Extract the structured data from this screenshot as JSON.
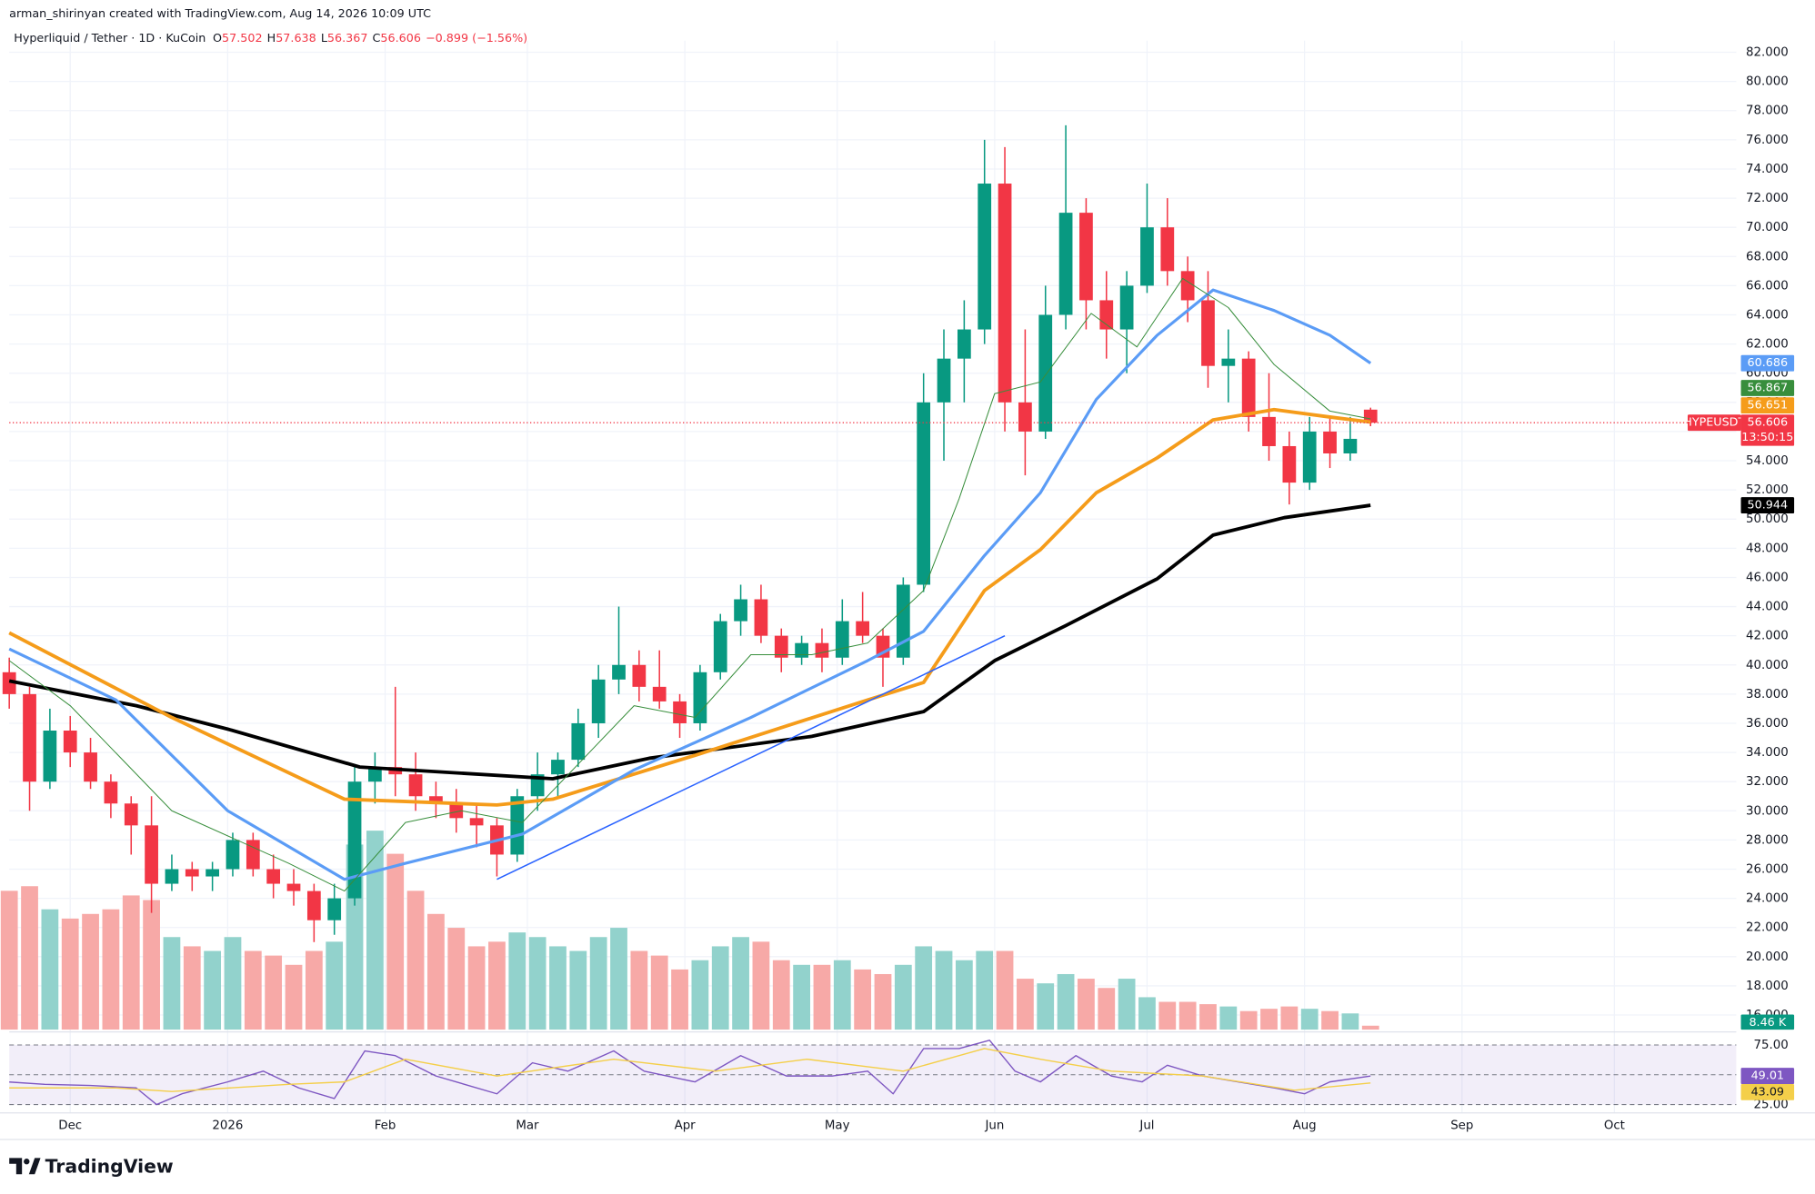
{
  "header": {
    "attribution": "arman_shirinyan created with TradingView.com, Aug 14, 2026 10:09 UTC",
    "symbol": "Hyperliquid / Tether · 1D · KuCoin",
    "change": "−0.899 (−1.56%)"
  },
  "footer": {
    "brand": "TradingView"
  },
  "chart_data": [
    {
      "type": "candlestick",
      "up_color": "#089981",
      "down_color": "#f23645",
      "volume_up_color": "#92d2cc",
      "volume_down_color": "#f7a9a7",
      "ohlc_labels": [
        "O",
        "H",
        "L",
        "C"
      ],
      "last_label": "HYPEUSDT",
      "countdown": "13:50:15",
      "volume_last_label": "8.46 K",
      "xlim": [
        -12,
        328
      ],
      "xticks": [
        {
          "value": 0,
          "label": "Dec"
        },
        {
          "value": 31,
          "label": "2026"
        },
        {
          "value": 62,
          "label": "Feb"
        },
        {
          "value": 90,
          "label": "Mar"
        },
        {
          "value": 121,
          "label": "Apr"
        },
        {
          "value": 151,
          "label": "May"
        },
        {
          "value": 182,
          "label": "Jun"
        },
        {
          "value": 212,
          "label": "Jul"
        },
        {
          "value": 243,
          "label": "Aug"
        },
        {
          "value": 274,
          "label": "Sep"
        },
        {
          "value": 304,
          "label": "Oct"
        }
      ],
      "ylim": [
        15,
        82.8
      ],
      "yticks": [
        {
          "value": 82,
          "label": "82.000"
        },
        {
          "value": 80,
          "label": "80.000"
        },
        {
          "value": 78,
          "label": "78.000"
        },
        {
          "value": 76,
          "label": "76.000"
        },
        {
          "value": 74,
          "label": "74.000"
        },
        {
          "value": 72,
          "label": "72.000"
        },
        {
          "value": 70,
          "label": "70.000"
        },
        {
          "value": 68,
          "label": "68.000"
        },
        {
          "value": 66,
          "label": "66.000"
        },
        {
          "value": 64,
          "label": "64.000"
        },
        {
          "value": 62,
          "label": "62.000"
        },
        {
          "value": 60,
          "label": "60.000"
        },
        {
          "value": 58,
          "label": "58.000"
        },
        {
          "value": 56,
          "label": "56.000"
        },
        {
          "value": 54,
          "label": "54.000"
        },
        {
          "value": 52,
          "label": "52.000"
        },
        {
          "value": 50,
          "label": "50.000"
        },
        {
          "value": 48,
          "label": "48.000"
        },
        {
          "value": 46,
          "label": "46.000"
        },
        {
          "value": 44,
          "label": "44.000"
        },
        {
          "value": 42,
          "label": "42.000"
        },
        {
          "value": 40,
          "label": "40.000"
        },
        {
          "value": 38,
          "label": "38.000"
        },
        {
          "value": 36,
          "label": "36.000"
        },
        {
          "value": 34,
          "label": "34.000"
        },
        {
          "value": 32,
          "label": "32.000"
        },
        {
          "value": 30,
          "label": "30.000"
        },
        {
          "value": 28,
          "label": "28.000"
        },
        {
          "value": 26,
          "label": "26.000"
        },
        {
          "value": 24,
          "label": "24.000"
        },
        {
          "value": 22,
          "label": "22.000"
        },
        {
          "value": 20,
          "label": "20.000"
        },
        {
          "value": 18,
          "label": "18.000"
        },
        {
          "value": 16,
          "label": "16.000"
        }
      ],
      "grid": true,
      "vlim": [
        0,
        600
      ],
      "x": [
        -12,
        -8,
        -4,
        0,
        4,
        8,
        12,
        16,
        20,
        24,
        28,
        32,
        36,
        40,
        44,
        48,
        52,
        56,
        60,
        64,
        68,
        72,
        76,
        80,
        84,
        88,
        92,
        96,
        100,
        104,
        108,
        112,
        116,
        120,
        124,
        128,
        132,
        136,
        140,
        144,
        148,
        152,
        156,
        160,
        164,
        168,
        172,
        176,
        180,
        184,
        188,
        192,
        196,
        200,
        204,
        208,
        212,
        216,
        220,
        224,
        228,
        232,
        236,
        240,
        244,
        248,
        252,
        256
      ],
      "open": [
        39.5,
        38,
        32,
        35.5,
        34,
        32,
        30.5,
        29,
        25,
        26,
        25.5,
        26,
        28,
        26,
        25,
        24.5,
        22.5,
        24,
        32,
        33,
        32.5,
        31,
        30.5,
        29.5,
        29,
        27,
        31,
        32.5,
        33.5,
        36,
        39,
        40,
        38.5,
        37.5,
        36,
        39.5,
        43,
        44.5,
        42,
        40.5,
        41.5,
        40.5,
        43,
        42,
        40.5,
        45.5,
        58,
        61,
        63,
        73,
        58,
        56,
        64,
        71,
        65,
        63,
        66,
        70,
        67,
        65,
        60.5,
        61,
        57,
        55,
        52.5,
        56,
        54.5,
        57.502
      ],
      "high": [
        40.5,
        38.5,
        37,
        36.5,
        35,
        32.5,
        31,
        31,
        27,
        26.5,
        26.5,
        28.5,
        28.5,
        27,
        26,
        25,
        25,
        33,
        34,
        38.5,
        34,
        32,
        31.5,
        30.5,
        29.5,
        31.5,
        34,
        34,
        37,
        40,
        44,
        41,
        41,
        38,
        40,
        43.5,
        45.5,
        45.5,
        42.5,
        42,
        42.5,
        44.5,
        45,
        42.5,
        46,
        60,
        63,
        65,
        76,
        75.5,
        63,
        66,
        77,
        72,
        67,
        67,
        73,
        72,
        68,
        67,
        63,
        61.5,
        60,
        56,
        57,
        57,
        57,
        57.638
      ],
      "low": [
        37,
        30,
        31.5,
        33,
        31.5,
        29.5,
        27,
        23,
        24.5,
        24.5,
        24.5,
        25.5,
        25.5,
        24,
        23.5,
        21,
        21.5,
        23.5,
        30.5,
        31,
        30,
        29.5,
        28.5,
        27.5,
        25.5,
        26.5,
        30,
        31,
        33,
        35,
        38,
        37.5,
        37,
        35,
        35.5,
        39,
        42,
        41.5,
        39.5,
        40,
        39.5,
        40,
        41.5,
        38.5,
        40,
        45,
        54,
        58,
        62,
        56,
        53,
        55.5,
        63,
        63,
        61,
        60,
        65.5,
        66,
        63.5,
        59,
        58,
        56,
        54,
        51,
        52,
        53.5,
        54,
        56.367
      ],
      "close": [
        38,
        32,
        35.5,
        34,
        32,
        30.5,
        29,
        25,
        26,
        25.5,
        26,
        28,
        26,
        25,
        24.5,
        22.5,
        24,
        32,
        33,
        32.5,
        31,
        30.5,
        29.5,
        29,
        27,
        31,
        32.5,
        33.5,
        36,
        39,
        40,
        38.5,
        37.5,
        36,
        39.5,
        43,
        44.5,
        42,
        40.5,
        41.5,
        40.5,
        43,
        42,
        40.5,
        45.5,
        58,
        61,
        63,
        73,
        58,
        56,
        64,
        71,
        65,
        63,
        66,
        70,
        67,
        65,
        60.5,
        61,
        57,
        55,
        52.5,
        56,
        54.5,
        55.5,
        56.606
      ],
      "volume": [
        300,
        310,
        260,
        240,
        250,
        260,
        290,
        280,
        200,
        180,
        170,
        200,
        170,
        160,
        140,
        170,
        190,
        400,
        430,
        380,
        300,
        250,
        220,
        180,
        190,
        210,
        200,
        180,
        170,
        200,
        220,
        170,
        160,
        130,
        150,
        180,
        200,
        190,
        150,
        140,
        140,
        150,
        130,
        120,
        140,
        180,
        170,
        150,
        170,
        170,
        110,
        100,
        120,
        110,
        90,
        110,
        70,
        60,
        60,
        55,
        50,
        40,
        45,
        50,
        45,
        40,
        35,
        8.46
      ],
      "series": [
        {
          "color": "#000000",
          "width": 3,
          "x": [
            -12,
            13,
            31,
            57,
            95,
            114,
            146,
            168,
            182,
            196,
            214,
            225,
            239,
            256
          ],
          "values": [
            38.9,
            37.2,
            35.6,
            33.0,
            32.2,
            33.6,
            35.1,
            36.8,
            40.3,
            42.7,
            45.9,
            48.9,
            50.1,
            50.944
          ]
        },
        {
          "color": "#f59c1a",
          "width": 3,
          "x": [
            -12,
            20,
            54,
            84,
            95,
            123,
            157,
            168,
            180,
            191,
            202,
            214,
            225,
            237,
            248,
            256
          ],
          "values": [
            42.2,
            36.4,
            30.8,
            30.4,
            30.8,
            33.8,
            37.6,
            38.8,
            45.1,
            47.9,
            51.8,
            54.2,
            56.8,
            57.5,
            57.0,
            56.651
          ]
        },
        {
          "color": "#5b9cf6",
          "width": 2.5,
          "x": [
            -12,
            9,
            31,
            54,
            66,
            89,
            111,
            134,
            157,
            168,
            180,
            191,
            202,
            214,
            225,
            237,
            248,
            256
          ],
          "values": [
            41.1,
            37.6,
            30.0,
            25.3,
            26.4,
            28.4,
            32.8,
            36.4,
            40.3,
            42.3,
            47.5,
            51.8,
            58.2,
            62.6,
            65.7,
            64.3,
            62.6,
            60.686
          ]
        },
        {
          "color": "#388e3c",
          "width": 0.8,
          "x": [
            -12,
            0,
            20,
            43,
            54,
            66,
            77,
            89,
            100,
            111,
            123,
            134,
            146,
            157,
            168,
            175,
            182,
            191,
            201,
            210,
            219,
            228,
            237,
            248,
            256
          ],
          "values": [
            40.3,
            37.2,
            30,
            26.4,
            24.5,
            29.2,
            30,
            29.2,
            33.2,
            37.2,
            36.4,
            40.7,
            40.7,
            41.5,
            45.1,
            51.4,
            58.6,
            59.4,
            64.1,
            61.8,
            66.5,
            64.5,
            60.6,
            57.4,
            56.867
          ]
        }
      ],
      "trendline": {
        "color": "#2962ff",
        "x": [
          84,
          184
        ],
        "values": [
          25.3,
          42.0
        ]
      }
    },
    {
      "type": "line",
      "ylim": [
        18,
        84
      ],
      "yticks": [
        {
          "value": 75,
          "label": "75.00"
        },
        {
          "value": 25,
          "label": "25.00"
        }
      ],
      "band": [
        25,
        75
      ],
      "mid": 50,
      "band_color": "#7e57c2",
      "series": [
        {
          "color": "#7e57c2",
          "x": [
            -12,
            -5,
            4,
            13,
            17,
            22,
            31,
            38,
            45,
            52,
            58,
            64,
            72,
            84,
            91,
            98,
            107,
            113,
            123,
            132,
            141,
            150,
            157,
            162,
            168,
            175,
            181,
            186,
            191,
            198,
            205,
            211,
            216,
            223,
            230,
            237,
            243,
            248,
            256
          ],
          "values": [
            43.9,
            42,
            41,
            39,
            25,
            34,
            44,
            53,
            39,
            30,
            70,
            66,
            49,
            34,
            60,
            53,
            70,
            53,
            44,
            66,
            49,
            49,
            53,
            34,
            72,
            72,
            79,
            53,
            44,
            66,
            49,
            44,
            58,
            49,
            44,
            39,
            34,
            44,
            49.01
          ]
        },
        {
          "color": "#f4cf4a",
          "x": [
            -12,
            9,
            20,
            43,
            54,
            66,
            84,
            107,
            127,
            145,
            164,
            180,
            191,
            205,
            223,
            241,
            256
          ],
          "values": [
            39,
            39,
            36,
            42,
            44,
            63,
            49,
            63,
            53,
            63,
            53,
            72,
            63,
            53,
            49,
            37,
            43.09
          ]
        }
      ]
    }
  ]
}
